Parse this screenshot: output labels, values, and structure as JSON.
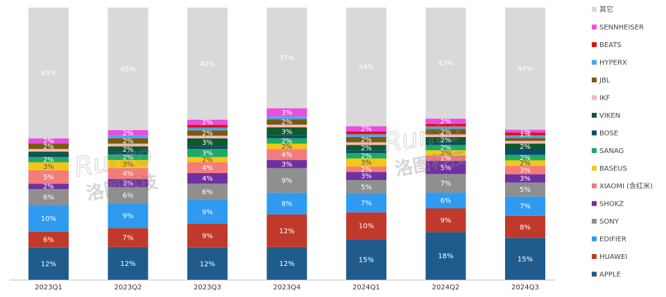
{
  "chart_data": {
    "type": "bar",
    "stacked": true,
    "percent": true,
    "categories": [
      "2023Q1",
      "2023Q2",
      "2023Q3",
      "2023Q4",
      "2024Q1",
      "2024Q2",
      "2024Q3"
    ],
    "series": [
      {
        "name": "APPLE",
        "color": "#1f5c8c",
        "values": [
          12,
          12,
          12,
          12,
          15,
          18,
          15
        ]
      },
      {
        "name": "HUAWEI",
        "color": "#c0392b",
        "values": [
          6,
          7,
          9,
          12,
          10,
          9,
          8
        ]
      },
      {
        "name": "EDIFIER",
        "color": "#2f9bf0",
        "values": [
          10,
          9,
          9,
          8,
          7,
          6,
          7
        ]
      },
      {
        "name": "SONY",
        "color": "#8f8f8f",
        "values": [
          6,
          6,
          6,
          9,
          5,
          7,
          5
        ]
      },
      {
        "name": "SHOKZ",
        "color": "#7030a0",
        "values": [
          2,
          3,
          4,
          3,
          3,
          5,
          3
        ]
      },
      {
        "name": "XIAOMI (含红米)",
        "color": "#f47c7c",
        "values": [
          5,
          4,
          4,
          4,
          2,
          2,
          3
        ]
      },
      {
        "name": "BASEUS",
        "color": "#f5c518",
        "values": [
          3,
          3,
          2,
          2,
          3,
          2,
          2
        ]
      },
      {
        "name": "SANAG",
        "color": "#1faa62",
        "values": [
          2,
          2,
          3,
          2,
          2,
          2,
          2
        ]
      },
      {
        "name": "BOSE",
        "color": "#0b4a6e",
        "values": [
          1,
          1,
          1,
          1,
          1,
          1,
          2
        ]
      },
      {
        "name": "VIKEN",
        "color": "#0d5a2c",
        "values": [
          1,
          2,
          3,
          3,
          2,
          2,
          2
        ]
      },
      {
        "name": "IKF",
        "color": "#f6b9b9",
        "values": [
          1,
          1,
          1,
          1,
          1,
          1,
          1
        ]
      },
      {
        "name": "JBL",
        "color": "#7a5a0f",
        "values": [
          2,
          2,
          2,
          2,
          2,
          2,
          1
        ]
      },
      {
        "name": "HYPERX",
        "color": "#4da6e8",
        "values": [
          0,
          1,
          1,
          1,
          1,
          1,
          1
        ]
      },
      {
        "name": "BEATS",
        "color": "#e01010",
        "values": [
          0,
          0,
          1,
          0,
          1,
          1,
          1
        ]
      },
      {
        "name": "SENNHEISER",
        "color": "#e84de0",
        "values": [
          2,
          2,
          2,
          3,
          2,
          2,
          1
        ]
      },
      {
        "name": "其它",
        "color": "#d9d9d9",
        "values": [
          49,
          45,
          42,
          37,
          44,
          42,
          44
        ]
      }
    ],
    "data_labels": [
      [
        "12%",
        "6%",
        "10%",
        "6%",
        "2%",
        "5%",
        "3%",
        "2%",
        "",
        "",
        "",
        "2%",
        "",
        "",
        "2%",
        "49%"
      ],
      [
        "12%",
        "7%",
        "9%",
        "6%",
        "3%",
        "4%",
        "3%",
        "2%",
        "",
        "2%",
        "",
        "2%",
        "",
        "",
        "2%",
        "45%"
      ],
      [
        "12%",
        "9%",
        "9%",
        "6%",
        "4%",
        "4%",
        "2%",
        "3%",
        "",
        "3%",
        "",
        "2%",
        "",
        "",
        "2%",
        "42%"
      ],
      [
        "12%",
        "12%",
        "8%",
        "9%",
        "3%",
        "4%",
        "2%",
        "2%",
        "",
        "3%",
        "",
        "2%",
        "",
        "",
        "3%",
        "37%"
      ],
      [
        "15%",
        "10%",
        "7%",
        "5%",
        "3%",
        "2%",
        "3%",
        "2%",
        "",
        "2%",
        "",
        "2%",
        "",
        "",
        "2%",
        "44%"
      ],
      [
        "18%",
        "9%",
        "6%",
        "7%",
        "5%",
        "2%",
        "2%",
        "2%",
        "",
        "2%",
        "",
        "2%",
        "",
        "",
        "2%",
        "42%"
      ],
      [
        "15%",
        "8%",
        "7%",
        "5%",
        "3%",
        "3%",
        "2%",
        "2%",
        "",
        "2%",
        "",
        "",
        "",
        "1%",
        "1%",
        "44%"
      ]
    ],
    "ylim": [
      0,
      100
    ],
    "legend_position": "right",
    "grid": false,
    "watermark": {
      "latin": "Runto",
      "cjk": "洛图科技"
    }
  }
}
